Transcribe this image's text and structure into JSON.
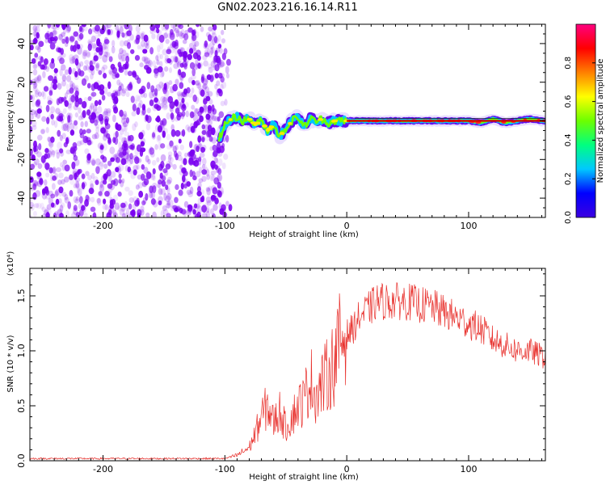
{
  "figure": {
    "title": "GN02.2023.216.16.14.R11"
  },
  "chart_data": [
    {
      "type": "heatmap",
      "title": "GN02.2023.216.16.14.R11",
      "xlabel": "Height of straight line (km)",
      "ylabel": "Frequency (Hz)",
      "xlim": [
        -260,
        163
      ],
      "ylim": [
        -50,
        50
      ],
      "x_ticks": [
        -200,
        -100,
        0,
        100
      ],
      "y_ticks": [
        -40,
        -20,
        0,
        20,
        40
      ],
      "colorbar": {
        "label": "Normalized spectral amplitude",
        "range": [
          0.0,
          1.0
        ],
        "ticks": [
          "0.0",
          "0.2",
          "0.4",
          "0.6",
          "0.8"
        ],
        "colormap": [
          "#3c00e0",
          "#0000ff",
          "#00c8ff",
          "#00ff80",
          "#6cff00",
          "#ffff00",
          "#ff8000",
          "#ff0000",
          "#ff0080"
        ]
      },
      "regions": [
        {
          "name": "noise",
          "x_range": [
            -260,
            -100
          ],
          "freq_range": [
            -50,
            50
          ],
          "amplitude": 0.05
        },
        {
          "name": "signal-line",
          "x_range": [
            -100,
            163
          ],
          "freq": 0,
          "amplitude": 0.9
        }
      ],
      "signal_trace": {
        "x": [
          -105,
          -100,
          -95,
          -90,
          -85,
          -80,
          -75,
          -70,
          -65,
          -60,
          -55,
          -50,
          -45,
          -40,
          -35,
          -30,
          -25,
          -20,
          -15,
          -10,
          -5,
          0,
          10,
          20,
          40,
          60,
          80,
          100,
          110,
          120,
          130,
          140,
          150,
          160
        ],
        "freq": [
          -10,
          -2,
          1,
          2,
          0,
          1,
          -2,
          0,
          -5,
          -2,
          -8,
          -4,
          0,
          2,
          -3,
          1,
          0,
          1,
          -1,
          0,
          0,
          0,
          0,
          0,
          0,
          0,
          0,
          0,
          -1,
          1,
          -1,
          0,
          1,
          0
        ]
      }
    },
    {
      "type": "line",
      "xlabel": "Height of straight line (km)",
      "ylabel": "SNR (10 * v/v)",
      "y_multiplier": "(x10⁴)",
      "xlim": [
        -260,
        163
      ],
      "ylim": [
        0,
        1.75
      ],
      "x_ticks": [
        -200,
        -100,
        0,
        100
      ],
      "y_ticks": [
        "0.0",
        "0.5",
        "1.0",
        "1.5"
      ],
      "series": [
        {
          "color": "#e8302c",
          "x": [
            -260,
            -240,
            -200,
            -160,
            -120,
            -100,
            -90,
            -80,
            -75,
            -70,
            -65,
            -60,
            -55,
            -50,
            -45,
            -40,
            -35,
            -30,
            -25,
            -20,
            -15,
            -10,
            -5,
            0,
            5,
            10,
            15,
            20,
            25,
            30,
            40,
            50,
            60,
            70,
            80,
            90,
            100,
            110,
            120,
            130,
            140,
            150,
            160
          ],
          "values": [
            0.02,
            0.02,
            0.02,
            0.02,
            0.02,
            0.02,
            0.05,
            0.12,
            0.25,
            0.4,
            0.5,
            0.35,
            0.45,
            0.3,
            0.4,
            0.5,
            0.55,
            0.75,
            0.6,
            0.7,
            0.8,
            0.9,
            1.1,
            1.15,
            1.2,
            1.3,
            1.35,
            1.4,
            1.45,
            1.45,
            1.45,
            1.45,
            1.42,
            1.4,
            1.35,
            1.3,
            1.25,
            1.2,
            1.1,
            1.05,
            1.0,
            1.0,
            0.95
          ]
        }
      ]
    }
  ]
}
